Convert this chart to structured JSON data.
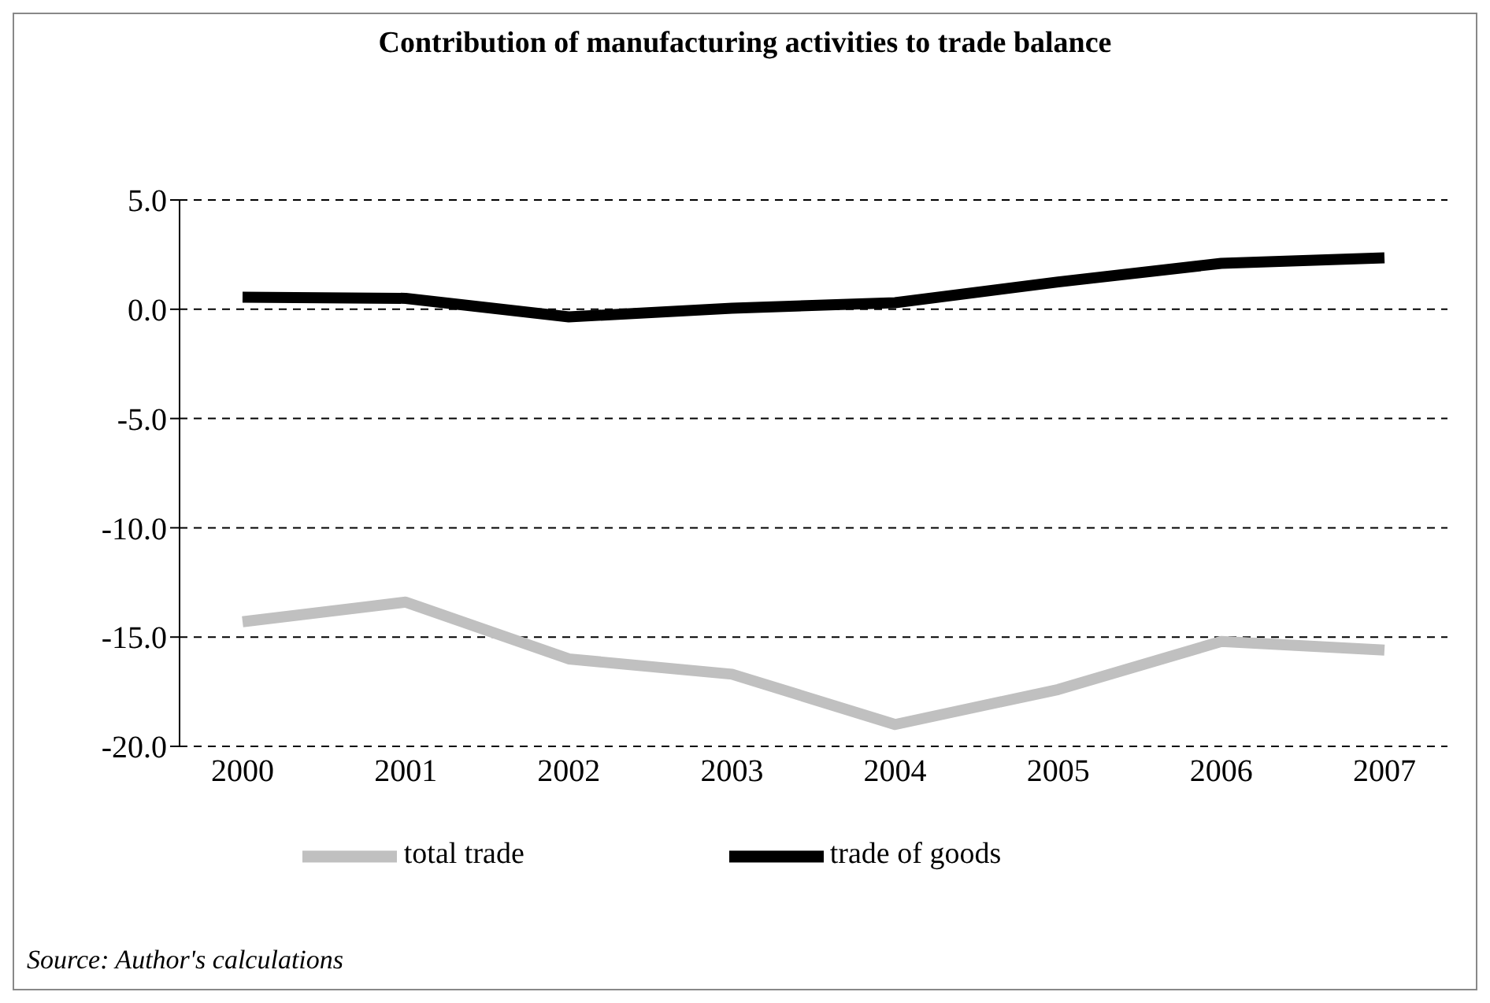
{
  "chart_data": {
    "type": "line",
    "title": "Contribution of manufacturing activities to trade balance",
    "categories": [
      "2000",
      "2001",
      "2002",
      "2003",
      "2004",
      "2005",
      "2006",
      "2007"
    ],
    "series": [
      {
        "name": "total trade",
        "color": "#c0c0c0",
        "values": [
          -14.3,
          -13.4,
          -16.0,
          -16.7,
          -19.0,
          -17.4,
          -15.2,
          -15.6
        ]
      },
      {
        "name": "trade of  goods",
        "color": "#000000",
        "values": [
          0.55,
          0.5,
          -0.35,
          0.05,
          0.3,
          1.25,
          2.1,
          2.35
        ]
      }
    ],
    "ylim": [
      -20,
      5
    ],
    "yticks": [
      {
        "value": -20,
        "label": "-20.0"
      },
      {
        "value": -15,
        "label": "-15.0"
      },
      {
        "value": -10,
        "label": "-10.0"
      },
      {
        "value": -5,
        "label": "-5.0"
      },
      {
        "value": 0,
        "label": "0.0"
      },
      {
        "value": 5,
        "label": "5.0"
      }
    ],
    "grid": "y",
    "legend": "bottom",
    "marker": "none",
    "line_style": "solid",
    "annotations": [
      "Source:  Author's calculations"
    ]
  }
}
